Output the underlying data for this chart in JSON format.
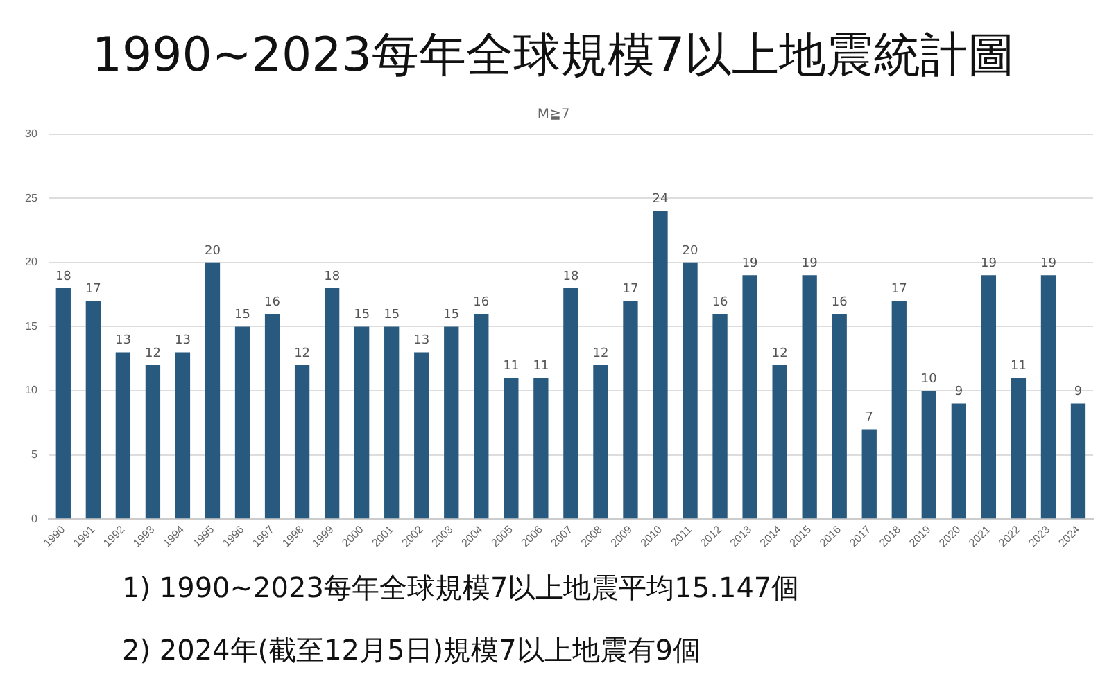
{
  "chart_data": {
    "type": "bar",
    "title": "1990~2023每年全球規模7以上地震統計圖",
    "subtitle": "M≧7",
    "categories": [
      "1990",
      "1991",
      "1992",
      "1993",
      "1994",
      "1995",
      "1996",
      "1997",
      "1998",
      "1999",
      "2000",
      "2001",
      "2002",
      "2003",
      "2004",
      "2005",
      "2006",
      "2007",
      "2008",
      "2009",
      "2010",
      "2011",
      "2012",
      "2013",
      "2014",
      "2015",
      "2016",
      "2017",
      "2018",
      "2019",
      "2020",
      "2021",
      "2022",
      "2023",
      "2024"
    ],
    "values": [
      18,
      17,
      13,
      12,
      13,
      20,
      15,
      16,
      12,
      18,
      15,
      15,
      13,
      15,
      16,
      11,
      11,
      18,
      12,
      17,
      24,
      20,
      16,
      19,
      12,
      19,
      16,
      7,
      17,
      10,
      9,
      19,
      11,
      19,
      9
    ],
    "color": "#275a7e",
    "ylim": [
      0,
      30
    ],
    "yticks": [
      0,
      5,
      10,
      15,
      20,
      25,
      30
    ],
    "grid": "y",
    "legend": false,
    "data_labels": true,
    "annotations": [
      "1)  1990~2023每年全球規模7以上地震平均15.147個",
      "2)  2024年(截至12月5日)規模7以上地震有9個"
    ]
  }
}
